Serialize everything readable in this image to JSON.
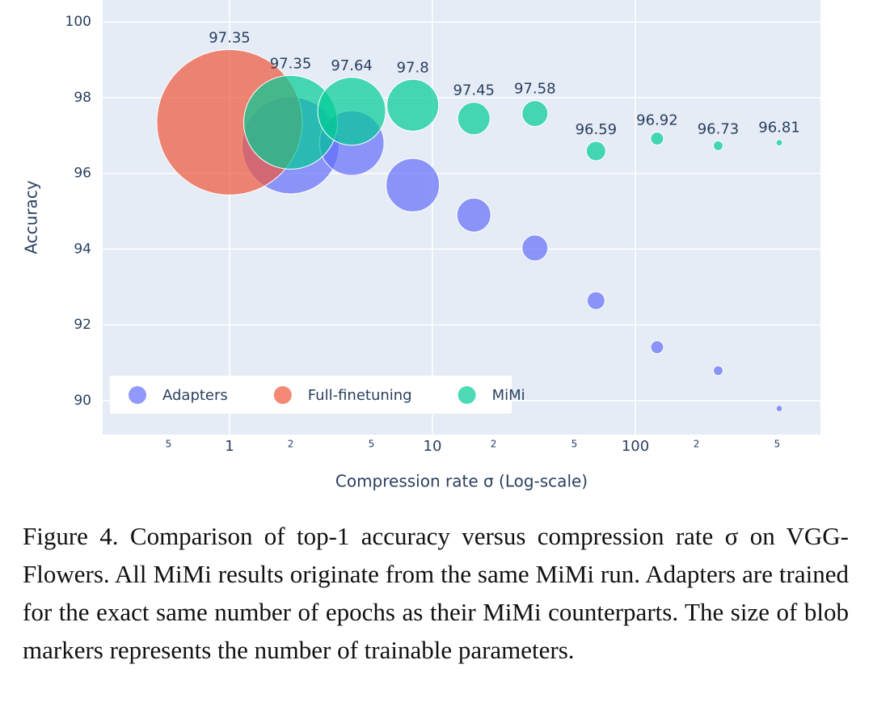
{
  "chart_data": {
    "type": "scatter",
    "x_label": "Compression rate σ (Log-scale)",
    "y_label": "Accuracy",
    "log_x": true,
    "xlim": [
      0.237,
      817
    ],
    "ylim": [
      89.1,
      100.58
    ],
    "xticks": [
      {
        "value": 0.5,
        "label": "5"
      },
      1,
      {
        "value": 2,
        "label": "2"
      },
      {
        "value": 5,
        "label": "5"
      },
      10,
      {
        "value": 20,
        "label": "2"
      },
      {
        "value": 50,
        "label": "5"
      },
      100,
      {
        "value": 200,
        "label": "2"
      },
      {
        "value": 500,
        "label": "5"
      }
    ],
    "yticks": [
      90,
      92,
      94,
      96,
      98,
      100
    ],
    "grid": true,
    "legend": "lower left",
    "series": [
      {
        "name": "Adapters",
        "color": "#636efa",
        "text_labels": false,
        "x": [
          2,
          4,
          8,
          16,
          32,
          64,
          128,
          256,
          512
        ],
        "values": [
          96.74,
          96.8,
          95.69,
          94.9,
          94.03,
          92.64,
          91.41,
          90.79,
          89.79
        ],
        "sizes": [
          120,
          80,
          66,
          42,
          32,
          22,
          16,
          12,
          8
        ]
      },
      {
        "name": "Full-finetuning",
        "color": "#ef553b",
        "text_labels": true,
        "x": [
          1
        ],
        "values": [
          97.35
        ],
        "sizes": [
          180
        ]
      },
      {
        "name": "MiMi",
        "color": "#00cc96",
        "text_labels": true,
        "x": [
          2,
          4,
          8,
          16,
          32,
          64,
          128,
          256,
          512
        ],
        "values": [
          97.35,
          97.64,
          97.8,
          97.45,
          97.58,
          96.59,
          96.92,
          96.73,
          96.81
        ],
        "sizes": [
          116,
          84,
          64,
          40,
          32,
          24,
          16,
          12,
          8
        ]
      }
    ]
  },
  "caption": "Figure 4. Comparison of top-1 accuracy versus compression rate σ on VGG-Flowers. All MiMi results originate from the same MiMi run. Adapters are trained for the exact same number of epochs as their MiMi counterparts. The size of blob markers represents the number of trainable parameters."
}
